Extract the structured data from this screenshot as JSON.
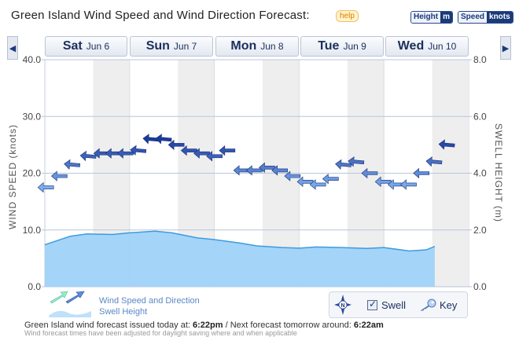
{
  "header": {
    "title": "Green Island Wind Speed and Wind Direction Forecast:",
    "help_label": "help",
    "height_unit": {
      "label": "Height",
      "value": "m"
    },
    "speed_unit": {
      "label": "Speed",
      "value": "knots"
    }
  },
  "nav": {
    "prev_icon": "left-arrow-icon",
    "next_icon": "right-arrow-icon",
    "days": [
      {
        "day": "Sat",
        "date": "Jun 6"
      },
      {
        "day": "Sun",
        "date": "Jun 7"
      },
      {
        "day": "Mon",
        "date": "Jun 8"
      },
      {
        "day": "Tue",
        "date": "Jun 9"
      },
      {
        "day": "Wed",
        "date": "Jun 10"
      }
    ]
  },
  "chart_data": {
    "type": "line",
    "title": "Green Island Wind Speed and Wind Direction Forecast",
    "ylabel_left": "WIND SPEED (knots)",
    "ylabel_right": "SWELL HEIGHT (m)",
    "ylim_left": [
      0,
      40
    ],
    "ylim_right": [
      0,
      8
    ],
    "yticks_left": [
      "0.0",
      "10.0",
      "20.0",
      "30.0",
      "40.0"
    ],
    "yticks_right": [
      "0.0",
      "2.0",
      "4.0",
      "6.0",
      "8.0"
    ],
    "x_range_days": [
      0,
      5
    ],
    "series": [
      {
        "name": "Wind Speed and Direction",
        "units": "knots",
        "x_days": [
          0.02,
          0.18,
          0.33,
          0.52,
          0.68,
          0.82,
          0.96,
          1.11,
          1.26,
          1.41,
          1.56,
          1.71,
          1.86,
          2.01,
          2.16,
          2.33,
          2.48,
          2.63,
          2.78,
          2.93,
          3.08,
          3.23,
          3.38,
          3.53,
          3.68,
          3.84,
          4.0,
          4.15,
          4.3,
          4.45,
          4.6,
          4.75
        ],
        "values": [
          17.5,
          19.5,
          21.5,
          23.0,
          23.5,
          23.5,
          23.5,
          24.0,
          26.0,
          26.0,
          25.0,
          24.0,
          23.5,
          23.0,
          24.0,
          20.5,
          20.5,
          21.0,
          20.5,
          19.5,
          18.5,
          18.0,
          19.0,
          21.5,
          22.0,
          20.0,
          18.5,
          18.0,
          18.0,
          20.0,
          22.0,
          25.0
        ],
        "direction_deg": [
          225,
          225,
          230,
          230,
          225,
          225,
          225,
          230,
          230,
          230,
          225,
          225,
          225,
          225,
          225,
          225,
          225,
          225,
          225,
          225,
          225,
          225,
          225,
          230,
          230,
          225,
          225,
          225,
          225,
          225,
          230,
          230
        ]
      },
      {
        "name": "Swell Height",
        "units": "m",
        "x_days": [
          0.0,
          0.3,
          0.5,
          0.8,
          1.0,
          1.3,
          1.5,
          1.8,
          2.0,
          2.3,
          2.5,
          2.8,
          3.0,
          3.2,
          3.5,
          3.8,
          4.0,
          4.3,
          4.5,
          4.6
        ],
        "values": [
          1.48,
          1.78,
          1.86,
          1.84,
          1.9,
          1.96,
          1.9,
          1.72,
          1.66,
          1.54,
          1.44,
          1.38,
          1.36,
          1.4,
          1.38,
          1.35,
          1.38,
          1.26,
          1.3,
          1.42
        ]
      }
    ],
    "shaded_night_bands_days": [
      [
        0.57,
        1.0
      ],
      [
        1.57,
        2.0
      ],
      [
        2.57,
        3.0
      ],
      [
        3.57,
        4.0
      ],
      [
        4.57,
        5.0
      ]
    ],
    "colors": {
      "wind_light": "#7aaef0",
      "wind_dark": "#1b3aa0",
      "swell_fill": "#9fd2f8",
      "swell_line": "#3c9be0",
      "night": "#eeeeee"
    }
  },
  "legend": {
    "wind_label": "Wind Speed and Direction",
    "swell_label": "Swell Height"
  },
  "controls": {
    "compass_label": "N",
    "swell_label": "Swell",
    "swell_checked": "✓",
    "key_label": "Key"
  },
  "footer": {
    "issued_prefix": "Green Island wind forecast issued today at:",
    "issued_time": "6:22pm",
    "next_prefix": "/ Next forecast tomorrow around:",
    "next_time": "6:22am",
    "adjusted_note": "Wind forecast times have been adjusted for daylight saving where and when applicable"
  }
}
